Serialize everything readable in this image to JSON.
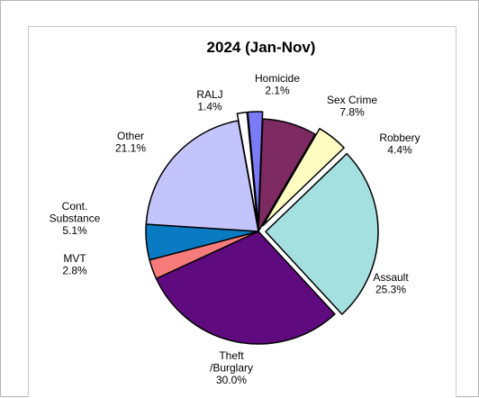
{
  "chart_data": {
    "type": "pie",
    "title": "2024 (Jan-Nov)",
    "slices": [
      {
        "label": "Homicide",
        "label_lines": [
          "Homicide"
        ],
        "value": 2.1,
        "pct_text": "2.1%",
        "color": "#7b7bf7",
        "exploded": true
      },
      {
        "label": "Sex Crime",
        "label_lines": [
          "Sex Crime"
        ],
        "value": 7.8,
        "pct_text": "7.8%",
        "color": "#7d2a63",
        "exploded": false
      },
      {
        "label": "Robbery",
        "label_lines": [
          "Robbery"
        ],
        "value": 4.4,
        "pct_text": "4.4%",
        "color": "#fffcc2",
        "exploded": true
      },
      {
        "label": "Assault",
        "label_lines": [
          "Assault"
        ],
        "value": 25.3,
        "pct_text": "25.3%",
        "color": "#a4e0e0",
        "exploded": true
      },
      {
        "label": "Theft /Burglary",
        "label_lines": [
          "Theft",
          "/Burglary"
        ],
        "value": 30.0,
        "pct_text": "30.0%",
        "color": "#5f0a7e",
        "exploded": false
      },
      {
        "label": "MVT",
        "label_lines": [
          "MVT"
        ],
        "value": 2.8,
        "pct_text": "2.8%",
        "color": "#f77b7b",
        "exploded": false
      },
      {
        "label": "Cont. Substance",
        "label_lines": [
          "Cont.",
          "Substance"
        ],
        "value": 5.1,
        "pct_text": "5.1%",
        "color": "#0a7ac2",
        "exploded": false
      },
      {
        "label": "Other",
        "label_lines": [
          "Other"
        ],
        "value": 21.1,
        "pct_text": "21.1%",
        "color": "#c4c4fc",
        "exploded": false
      },
      {
        "label": "RALJ",
        "label_lines": [
          "RALJ"
        ],
        "value": 1.4,
        "pct_text": "1.4%",
        "color": "#ffffff",
        "exploded": true
      }
    ]
  }
}
